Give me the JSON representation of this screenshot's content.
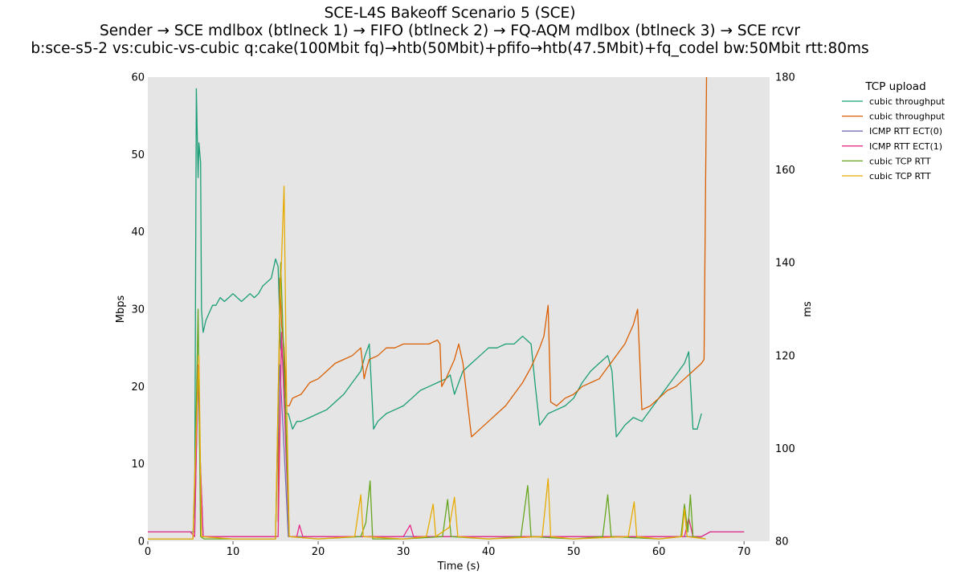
{
  "chart_data": {
    "type": "line",
    "title": [
      "SCE-L4S Bakeoff Scenario 5 (SCE)",
      "Sender → SCE mdlbox (btlneck 1) → FIFO (btlneck 2) → FQ-AQM mdlbox (btlneck 3) → SCE rcvr",
      "b:sce-s5-2 vs:cubic-vs-cubic q:cake(100Mbit fq)→htb(50Mbit)+pfifo→htb(47.5Mbit)+fq_codel bw:50Mbit rtt:80ms"
    ],
    "xlabel": "Time (s)",
    "ylabel_left": "Mbps",
    "ylabel_right": "ms",
    "xlim": [
      0,
      73
    ],
    "ylim_left": [
      0,
      60
    ],
    "ylim_right": [
      80,
      180
    ],
    "x_ticks": [
      "0",
      "10",
      "20",
      "30",
      "40",
      "50",
      "60",
      "70"
    ],
    "y_left_ticks": [
      "0",
      "10",
      "20",
      "30",
      "40",
      "50",
      "60"
    ],
    "y_right_ticks": [
      "80",
      "100",
      "120",
      "140",
      "160",
      "180"
    ],
    "grid": false,
    "background": "#e5e5e5",
    "legend": {
      "title": "TCP upload",
      "placement": "outside-right",
      "entries": [
        "cubic throughput",
        "cubic throughput",
        "ICMP RTT ECT(0)",
        "ICMP RTT ECT(1)",
        "cubic TCP RTT",
        "cubic TCP RTT"
      ]
    },
    "series": [
      {
        "name": "cubic throughput",
        "axis": "left",
        "color": "#1b9e77",
        "x": [
          5.5,
          5.7,
          5.9,
          6.0,
          6.2,
          6.3,
          6.5,
          6.8,
          7.2,
          7.6,
          8.0,
          8.5,
          9.0,
          9.5,
          10.0,
          10.5,
          11.0,
          11.5,
          12.0,
          12.5,
          13.0,
          13.5,
          14.0,
          14.5,
          15.0,
          15.3,
          15.6,
          15.9,
          16.2,
          16.5,
          17.0,
          17.5,
          18.0,
          19.0,
          20.0,
          21.0,
          22.0,
          23.0,
          24.0,
          25.0,
          25.5,
          26.0,
          26.5,
          27.0,
          28.0,
          29.0,
          30.0,
          31.0,
          32.0,
          33.0,
          34.0,
          35.0,
          35.5,
          36.0,
          37.0,
          38.0,
          39.0,
          40.0,
          41.0,
          42.0,
          43.0,
          44.0,
          45.0,
          45.5,
          46.0,
          47.0,
          48.0,
          49.0,
          50.0,
          51.0,
          52.0,
          53.0,
          54.0,
          54.5,
          55.0,
          56.0,
          57.0,
          58.0,
          59.0,
          60.0,
          61.0,
          62.0,
          63.0,
          63.5,
          64.0,
          64.5,
          65.0
        ],
        "values": [
          3,
          58.5,
          47,
          51.5,
          49,
          30,
          27,
          28.5,
          29.5,
          30.5,
          30.5,
          31.5,
          31,
          31.5,
          32,
          31.5,
          31,
          31.5,
          32,
          31.5,
          32,
          33,
          33.5,
          34,
          36.5,
          35.5,
          25,
          23,
          16.5,
          16.5,
          14.5,
          15.5,
          15.5,
          16,
          16.5,
          17,
          18,
          19,
          20.5,
          22,
          24,
          25.5,
          14.5,
          15.5,
          16.5,
          17,
          17.5,
          18.5,
          19.5,
          20,
          20.5,
          21,
          21.5,
          19,
          22,
          23,
          24,
          25,
          25,
          25.5,
          25.5,
          26.5,
          25.5,
          20,
          15,
          16.5,
          17,
          17.5,
          18.5,
          20.5,
          22,
          23,
          24,
          22,
          13.5,
          15,
          16,
          15.5,
          17,
          18.5,
          20,
          21.5,
          23,
          24.5,
          14.5,
          14.5,
          16.5
        ]
      },
      {
        "name": "cubic throughput",
        "axis": "left",
        "color": "#d95f02",
        "x": [
          15.3,
          15.5,
          15.7,
          16.0,
          16.3,
          16.6,
          17.0,
          18.0,
          19.0,
          20.0,
          21.0,
          22.0,
          23.0,
          24.0,
          25.0,
          25.4,
          25.6,
          26.0,
          27.0,
          28.0,
          29.0,
          30.0,
          31.0,
          32.0,
          33.0,
          34.0,
          34.3,
          34.5,
          35.0,
          36.0,
          36.5,
          37.0,
          38.0,
          39.0,
          40.0,
          41.0,
          42.0,
          43.0,
          44.0,
          45.0,
          46.0,
          46.5,
          47.0,
          47.3,
          48.0,
          49.0,
          50.0,
          51.0,
          52.0,
          53.0,
          54.0,
          55.0,
          56.0,
          57.0,
          57.5,
          58.0,
          59.0,
          60.0,
          61.0,
          62.0,
          63.0,
          64.0,
          65.0,
          65.3,
          65.6
        ],
        "values": [
          2.5,
          34,
          28,
          25,
          17.5,
          17.5,
          18.5,
          19,
          20.5,
          21,
          22,
          23,
          23.5,
          24,
          25,
          21,
          22,
          23.5,
          24,
          25,
          25,
          25.5,
          25.5,
          25.5,
          25.5,
          26,
          25.5,
          20,
          21,
          23.5,
          25.5,
          23,
          13.5,
          14.5,
          15.5,
          16.5,
          17.5,
          19,
          20.5,
          22.5,
          25,
          26.5,
          30.5,
          18,
          17.5,
          18.5,
          19,
          20,
          20.5,
          21,
          22.5,
          24,
          25.5,
          28,
          30,
          17,
          17.5,
          18.5,
          19.5,
          20,
          21,
          22,
          23,
          23.5,
          60
        ]
      },
      {
        "name": "ICMP RTT ECT(0)",
        "axis": "right",
        "color": "#7570b3",
        "x": [
          0,
          2,
          4,
          5.5,
          5.9,
          6.1,
          6.5,
          8,
          10,
          12,
          15,
          15.5,
          16,
          16.5,
          18,
          20,
          22,
          25,
          28,
          30,
          33,
          36,
          40,
          44,
          47,
          50,
          54,
          57,
          60,
          63,
          64,
          65,
          66,
          68,
          70
        ],
        "values": [
          82,
          82,
          82,
          82,
          118,
          100,
          81,
          81,
          81,
          81,
          81,
          118,
          100,
          81,
          81,
          81,
          81,
          81,
          81,
          81,
          81,
          81,
          81,
          81,
          81,
          81,
          81,
          81,
          81,
          81,
          81,
          81,
          82,
          82,
          82
        ]
      },
      {
        "name": "ICMP RTT ECT(1)",
        "axis": "right",
        "color": "#e7298a",
        "x": [
          0,
          1,
          2,
          3,
          4,
          5,
          5.5,
          5.9,
          6.1,
          6.5,
          7,
          10,
          14,
          15.3,
          15.7,
          16.2,
          16.6,
          17.5,
          17.8,
          18.2,
          20,
          25,
          30,
          30.8,
          31.2,
          35,
          40,
          45,
          50,
          55,
          60,
          63,
          63.5,
          64,
          65,
          66,
          67,
          68,
          70
        ],
        "values": [
          82,
          82,
          82,
          82,
          82,
          82,
          81,
          118,
          100,
          81,
          81,
          81,
          81,
          81,
          125,
          100,
          81,
          81,
          83.5,
          81,
          81,
          81,
          81,
          83.5,
          81,
          81,
          81,
          81,
          81,
          81,
          81,
          81,
          85,
          81,
          81,
          82,
          82,
          82,
          82
        ]
      },
      {
        "name": "cubic TCP RTT",
        "axis": "right",
        "color": "#66a61e",
        "x": [
          0,
          5.3,
          5.6,
          5.9,
          6.2,
          6.6,
          10,
          15.0,
          15.6,
          16.0,
          16.3,
          16.6,
          20,
          25,
          25.6,
          26.1,
          26.4,
          30,
          34.6,
          35.2,
          35.6,
          40,
          43.8,
          44.6,
          45.0,
          50,
          53.4,
          54.0,
          54.4,
          60,
          62.6,
          63.0,
          63.4,
          63.7,
          64.0,
          65.5
        ],
        "values": [
          80.5,
          80.5,
          100,
          130,
          81,
          80.5,
          80.5,
          80.5,
          140,
          118,
          100,
          81,
          80.5,
          81,
          84,
          93,
          80.5,
          80.5,
          81,
          89,
          81,
          80.5,
          81,
          92,
          81,
          80.5,
          81,
          90,
          81,
          80.5,
          81,
          88,
          82,
          90,
          81,
          80.5
        ]
      },
      {
        "name": "cubic TCP RTT",
        "axis": "right",
        "color": "#e6ab02",
        "x": [
          0,
          5.3,
          5.7,
          6.0,
          6.3,
          10,
          15.0,
          15.5,
          16.0,
          16.3,
          16.6,
          20,
          24.3,
          25.0,
          25.3,
          30,
          32.7,
          33.5,
          33.8,
          35.4,
          36.0,
          36.4,
          40,
          46.3,
          47.0,
          47.3,
          50,
          56.4,
          57.1,
          57.4,
          60,
          62.7,
          63.0,
          63.3,
          65.5
        ],
        "values": [
          80.5,
          80.5,
          105,
          120,
          81,
          80.5,
          80.5,
          130,
          156.5,
          110,
          81,
          80.5,
          81,
          90,
          81,
          80.5,
          81,
          88,
          81,
          83,
          89.5,
          81,
          80.5,
          81,
          93.5,
          81,
          80.5,
          81,
          88.5,
          81,
          80.5,
          81,
          87,
          81,
          80.5
        ]
      }
    ]
  }
}
